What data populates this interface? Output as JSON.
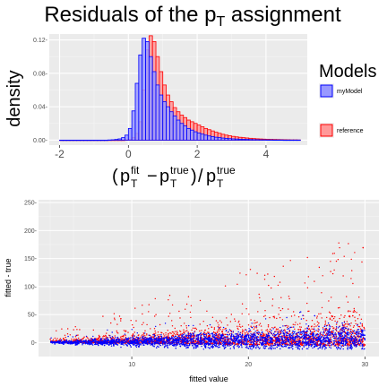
{
  "chart_data": [
    {
      "type": "bar",
      "title_parts": [
        "Residuals of the p",
        "T",
        " assignment"
      ],
      "ylabel": "density",
      "xlabel_parts": {
        "p": "p",
        "T": "T",
        "fit": "fit",
        "true": "true",
        "minus": "−",
        "slash": "/"
      },
      "xlim": [
        -2.3,
        5.2
      ],
      "ylim": [
        -0.006,
        0.127
      ],
      "x_ticks": [
        -2,
        0,
        2,
        4
      ],
      "x_tick_labels": [
        "-2",
        "0",
        "2",
        "4"
      ],
      "y_ticks": [
        0,
        0.04,
        0.08,
        0.12
      ],
      "y_tick_labels": [
        "0.00-",
        "0.04-",
        "0.08-",
        "0.12-"
      ],
      "grid": true,
      "legend": {
        "title": "Models",
        "placement": "right",
        "entries": [
          "myModel",
          "reference"
        ]
      },
      "bin_width": 0.1,
      "bin_start": -2.0,
      "series": [
        {
          "name": "myModel",
          "fill": "#9999ff",
          "stroke": "#0000ff",
          "values": [
            0,
            0,
            0,
            0,
            0,
            0,
            0,
            0,
            0,
            0,
            0,
            0,
            0,
            0,
            0.0002,
            0.0004,
            0.0008,
            0.0015,
            0.003,
            0.006,
            0.014,
            0.035,
            0.068,
            0.102,
            0.122,
            0.118,
            0.1,
            0.082,
            0.066,
            0.054,
            0.046,
            0.04,
            0.034,
            0.029,
            0.024,
            0.02,
            0.017,
            0.014,
            0.012,
            0.01,
            0.0085,
            0.0072,
            0.006,
            0.005,
            0.0042,
            0.0035,
            0.003,
            0.0025,
            0.0021,
            0.0018,
            0.0015,
            0.0013,
            0.0011,
            0.0009,
            0.0008,
            0.0007,
            0.0006,
            0.0005,
            0.0004,
            0.0004,
            0.0003,
            0.0003,
            0.0002,
            0.0002,
            0.0002,
            0.0001,
            0.0001,
            0.0001,
            0.0001,
            0.0001
          ]
        },
        {
          "name": "reference",
          "fill": "#ff9999",
          "stroke": "#ff0000",
          "values": [
            0,
            0,
            0,
            0,
            0,
            0,
            0,
            0,
            0,
            0,
            0,
            0,
            0,
            0,
            0,
            0,
            0,
            0,
            0,
            0.0003,
            0.001,
            0.003,
            0.008,
            0.022,
            0.06,
            0.108,
            0.125,
            0.118,
            0.1,
            0.082,
            0.066,
            0.054,
            0.046,
            0.039,
            0.034,
            0.03,
            0.027,
            0.024,
            0.022,
            0.02,
            0.018,
            0.016,
            0.014,
            0.0125,
            0.011,
            0.0095,
            0.0082,
            0.007,
            0.006,
            0.0052,
            0.0045,
            0.0039,
            0.0034,
            0.003,
            0.0026,
            0.0022,
            0.0019,
            0.0016,
            0.0014,
            0.0012,
            0.001,
            0.0009,
            0.0008,
            0.0007,
            0.0006,
            0.0005,
            0.0004,
            0.0003,
            0.0003,
            0.0002
          ]
        }
      ]
    },
    {
      "type": "scatter",
      "xlabel": "fitted value",
      "ylabel": "fitted - true",
      "xlim": [
        2,
        31.2
      ],
      "ylim": [
        -25,
        255
      ],
      "x_ticks": [
        10,
        20,
        30
      ],
      "x_tick_labels": [
        "10",
        "20",
        "30"
      ],
      "y_ticks": [
        0,
        50,
        100,
        150,
        200,
        250
      ],
      "y_tick_labels": [
        "0-",
        "50-",
        "100-",
        "150-",
        "200-",
        "250-"
      ],
      "grid": true,
      "x_range": [
        3,
        30
      ],
      "series": [
        {
          "name": "reference",
          "color": "#ff0000"
        },
        {
          "name": "myModel",
          "color": "#0000ff"
        }
      ]
    }
  ]
}
